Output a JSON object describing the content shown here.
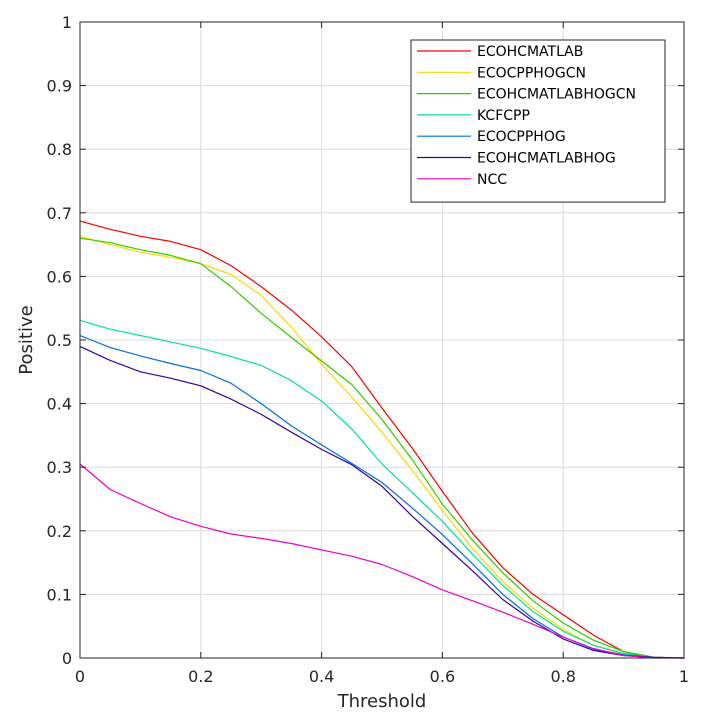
{
  "chart_data": {
    "type": "line",
    "title": "",
    "xlabel": "Threshold",
    "ylabel": "Positive",
    "xlim": [
      0,
      1
    ],
    "ylim": [
      0,
      1
    ],
    "grid": true,
    "legend_position": "top-right",
    "xticks": [
      0,
      0.2,
      0.4,
      0.6,
      0.8,
      1
    ],
    "xtick_labels": [
      "0",
      "0.2",
      "0.4",
      "0.6",
      "0.8",
      "1"
    ],
    "yticks": [
      0,
      0.1,
      0.2,
      0.3,
      0.4,
      0.5,
      0.6,
      0.7,
      0.8,
      0.9,
      1
    ],
    "ytick_labels": [
      "0",
      "0.1",
      "0.2",
      "0.3",
      "0.4",
      "0.5",
      "0.6",
      "0.7",
      "0.8",
      "0.9",
      "1"
    ],
    "x": [
      0,
      0.05,
      0.1,
      0.15,
      0.2,
      0.25,
      0.3,
      0.35,
      0.4,
      0.45,
      0.5,
      0.55,
      0.6,
      0.65,
      0.7,
      0.75,
      0.8,
      0.85,
      0.9,
      0.95,
      1
    ],
    "series": [
      {
        "name": "ECOHCMATLAB",
        "color": "#ff0000",
        "values": [
          0.687,
          0.674,
          0.663,
          0.655,
          0.642,
          0.617,
          0.584,
          0.547,
          0.505,
          0.458,
          0.393,
          0.33,
          0.262,
          0.196,
          0.142,
          0.1,
          0.068,
          0.036,
          0.01,
          0.001,
          0.0
        ]
      },
      {
        "name": "ECOCPPHOGCN",
        "color": "#ffd700",
        "values": [
          0.663,
          0.65,
          0.638,
          0.63,
          0.62,
          0.603,
          0.57,
          0.52,
          0.462,
          0.41,
          0.355,
          0.295,
          0.232,
          0.172,
          0.12,
          0.078,
          0.045,
          0.02,
          0.006,
          0.001,
          0.0
        ]
      },
      {
        "name": "ECOHCMATLABHOGCN",
        "color": "#33cc00",
        "values": [
          0.66,
          0.653,
          0.642,
          0.633,
          0.62,
          0.584,
          0.542,
          0.504,
          0.467,
          0.43,
          0.375,
          0.312,
          0.242,
          0.185,
          0.134,
          0.09,
          0.055,
          0.028,
          0.01,
          0.001,
          0.0
        ]
      },
      {
        "name": "KCFCPP",
        "color": "#00e68a",
        "values": [
          0.531,
          0.517,
          0.507,
          0.497,
          0.487,
          0.474,
          0.46,
          0.436,
          0.404,
          0.36,
          0.305,
          0.26,
          0.215,
          0.163,
          0.114,
          0.073,
          0.042,
          0.02,
          0.007,
          0.001,
          0.0
        ]
      },
      {
        "name": "ECOCPPHOG",
        "color": "#0072d9",
        "values": [
          0.507,
          0.488,
          0.475,
          0.463,
          0.452,
          0.432,
          0.4,
          0.365,
          0.335,
          0.306,
          0.276,
          0.236,
          0.194,
          0.148,
          0.1,
          0.062,
          0.033,
          0.014,
          0.005,
          0.001,
          0.0
        ]
      },
      {
        "name": "ECOHCMATLABHOG",
        "color": "#3300aa",
        "values": [
          0.49,
          0.468,
          0.45,
          0.44,
          0.428,
          0.407,
          0.383,
          0.355,
          0.328,
          0.304,
          0.27,
          0.223,
          0.18,
          0.137,
          0.092,
          0.058,
          0.03,
          0.012,
          0.004,
          0.001,
          0.0
        ]
      },
      {
        "name": "NCC",
        "color": "#ee00cc",
        "values": [
          0.305,
          0.265,
          0.243,
          0.222,
          0.207,
          0.195,
          0.188,
          0.18,
          0.17,
          0.16,
          0.147,
          0.128,
          0.107,
          0.09,
          0.072,
          0.053,
          0.033,
          0.015,
          0.004,
          0.0,
          0.0
        ]
      }
    ]
  }
}
